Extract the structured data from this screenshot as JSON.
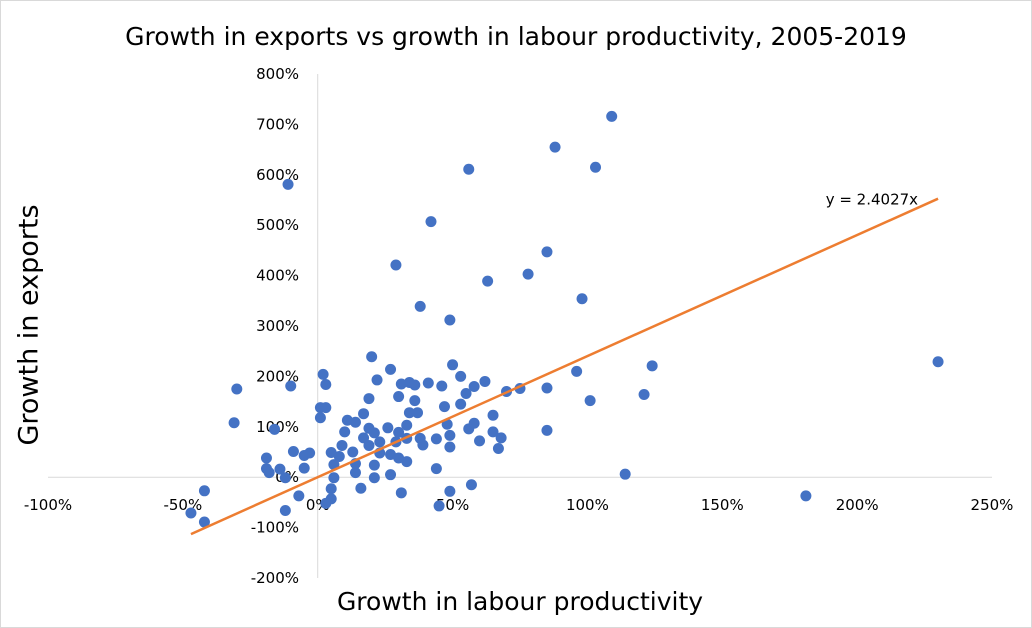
{
  "chart_data": {
    "type": "scatter",
    "title": "Growth in exports vs growth in labour productivity, 2005-2019",
    "xlabel": "Growth in labour productivity",
    "ylabel": "Growth in exports",
    "xlim": [
      -100,
      250
    ],
    "ylim": [
      -200,
      800
    ],
    "x_ticks": [
      "-100%",
      "-50%",
      "0%",
      "50%",
      "100%",
      "150%",
      "200%",
      "250%"
    ],
    "y_ticks": [
      "-200%",
      "-100%",
      "0%",
      "100%",
      "200%",
      "300%",
      "400%",
      "500%",
      "600%",
      "700%",
      "800%"
    ],
    "x_tick_values": [
      -100,
      -50,
      0,
      50,
      100,
      150,
      200,
      250
    ],
    "y_tick_values": [
      -200,
      -100,
      0,
      100,
      200,
      300,
      400,
      500,
      600,
      700,
      800
    ],
    "grid": false,
    "marker_color": "#4472c4",
    "trendline": {
      "equation_label": "y = 2.4027x",
      "slope": 2.4027,
      "x_range": [
        -47,
        230
      ],
      "color": "#ed7d31"
    },
    "points": [
      {
        "x": 109,
        "y": 716
      },
      {
        "x": 88,
        "y": 655
      },
      {
        "x": 103,
        "y": 615
      },
      {
        "x": 56,
        "y": 611
      },
      {
        "x": -11,
        "y": 581
      },
      {
        "x": 42,
        "y": 507
      },
      {
        "x": 85,
        "y": 447
      },
      {
        "x": 29,
        "y": 421
      },
      {
        "x": 78,
        "y": 403
      },
      {
        "x": 63,
        "y": 389
      },
      {
        "x": 98,
        "y": 354
      },
      {
        "x": 38,
        "y": 339
      },
      {
        "x": 49,
        "y": 312
      },
      {
        "x": 230,
        "y": 229
      },
      {
        "x": 124,
        "y": 221
      },
      {
        "x": 20,
        "y": 239
      },
      {
        "x": 50,
        "y": 223
      },
      {
        "x": 27,
        "y": 214
      },
      {
        "x": 96,
        "y": 210
      },
      {
        "x": 53,
        "y": 200
      },
      {
        "x": 2,
        "y": 204
      },
      {
        "x": 22,
        "y": 193
      },
      {
        "x": 62,
        "y": 190
      },
      {
        "x": 3,
        "y": 184
      },
      {
        "x": 31,
        "y": 185
      },
      {
        "x": 34,
        "y": 188
      },
      {
        "x": 36,
        "y": 183
      },
      {
        "x": 41,
        "y": 187
      },
      {
        "x": 46,
        "y": 181
      },
      {
        "x": 58,
        "y": 180
      },
      {
        "x": 75,
        "y": 176
      },
      {
        "x": 85,
        "y": 177
      },
      {
        "x": -10,
        "y": 181
      },
      {
        "x": -30,
        "y": 175
      },
      {
        "x": 70,
        "y": 170
      },
      {
        "x": 55,
        "y": 166
      },
      {
        "x": 121,
        "y": 164
      },
      {
        "x": 30,
        "y": 160
      },
      {
        "x": 19,
        "y": 156
      },
      {
        "x": 36,
        "y": 152
      },
      {
        "x": 101,
        "y": 152
      },
      {
        "x": 53,
        "y": 145
      },
      {
        "x": 47,
        "y": 140
      },
      {
        "x": 1,
        "y": 138
      },
      {
        "x": 3,
        "y": 138
      },
      {
        "x": 17,
        "y": 126
      },
      {
        "x": 34,
        "y": 128
      },
      {
        "x": 37,
        "y": 128
      },
      {
        "x": 65,
        "y": 123
      },
      {
        "x": 1,
        "y": 118
      },
      {
        "x": 11,
        "y": 113
      },
      {
        "x": 14,
        "y": 109
      },
      {
        "x": -31,
        "y": 108
      },
      {
        "x": 58,
        "y": 107
      },
      {
        "x": 48,
        "y": 105
      },
      {
        "x": 33,
        "y": 103
      },
      {
        "x": 19,
        "y": 97
      },
      {
        "x": 26,
        "y": 98
      },
      {
        "x": 56,
        "y": 96
      },
      {
        "x": 85,
        "y": 93
      },
      {
        "x": -16,
        "y": 95
      },
      {
        "x": 10,
        "y": 90
      },
      {
        "x": 21,
        "y": 88
      },
      {
        "x": 30,
        "y": 89
      },
      {
        "x": 65,
        "y": 90
      },
      {
        "x": 49,
        "y": 83
      },
      {
        "x": 44,
        "y": 76
      },
      {
        "x": 38,
        "y": 77
      },
      {
        "x": 17,
        "y": 78
      },
      {
        "x": 33,
        "y": 77
      },
      {
        "x": 68,
        "y": 78
      },
      {
        "x": 60,
        "y": 72
      },
      {
        "x": 23,
        "y": 70
      },
      {
        "x": 29,
        "y": 70
      },
      {
        "x": 9,
        "y": 63
      },
      {
        "x": 19,
        "y": 63
      },
      {
        "x": 39,
        "y": 64
      },
      {
        "x": 49,
        "y": 60
      },
      {
        "x": 67,
        "y": 57
      },
      {
        "x": -9,
        "y": 51
      },
      {
        "x": 5,
        "y": 49
      },
      {
        "x": 13,
        "y": 50
      },
      {
        "x": 23,
        "y": 48
      },
      {
        "x": 27,
        "y": 45
      },
      {
        "x": -3,
        "y": 48
      },
      {
        "x": -5,
        "y": 43
      },
      {
        "x": 8,
        "y": 41
      },
      {
        "x": -19,
        "y": 38
      },
      {
        "x": 30,
        "y": 38
      },
      {
        "x": 33,
        "y": 31
      },
      {
        "x": 6,
        "y": 25
      },
      {
        "x": 14,
        "y": 27
      },
      {
        "x": 21,
        "y": 24
      },
      {
        "x": -19,
        "y": 17
      },
      {
        "x": -5,
        "y": 18
      },
      {
        "x": -14,
        "y": 16
      },
      {
        "x": 44,
        "y": 17
      },
      {
        "x": -18,
        "y": 9
      },
      {
        "x": 14,
        "y": 9
      },
      {
        "x": 27,
        "y": 5
      },
      {
        "x": 114,
        "y": 6
      },
      {
        "x": 6,
        "y": -1
      },
      {
        "x": 21,
        "y": -1
      },
      {
        "x": -12,
        "y": -1
      },
      {
        "x": 57,
        "y": -15
      },
      {
        "x": 5,
        "y": -23
      },
      {
        "x": 16,
        "y": -22
      },
      {
        "x": 31,
        "y": -31
      },
      {
        "x": 49,
        "y": -28
      },
      {
        "x": -42,
        "y": -27
      },
      {
        "x": -7,
        "y": -37
      },
      {
        "x": 181,
        "y": -37
      },
      {
        "x": 5,
        "y": -43
      },
      {
        "x": 3,
        "y": -52
      },
      {
        "x": 45,
        "y": -57
      },
      {
        "x": -12,
        "y": -66
      },
      {
        "x": -47,
        "y": -71
      },
      {
        "x": -42,
        "y": -89
      }
    ]
  }
}
